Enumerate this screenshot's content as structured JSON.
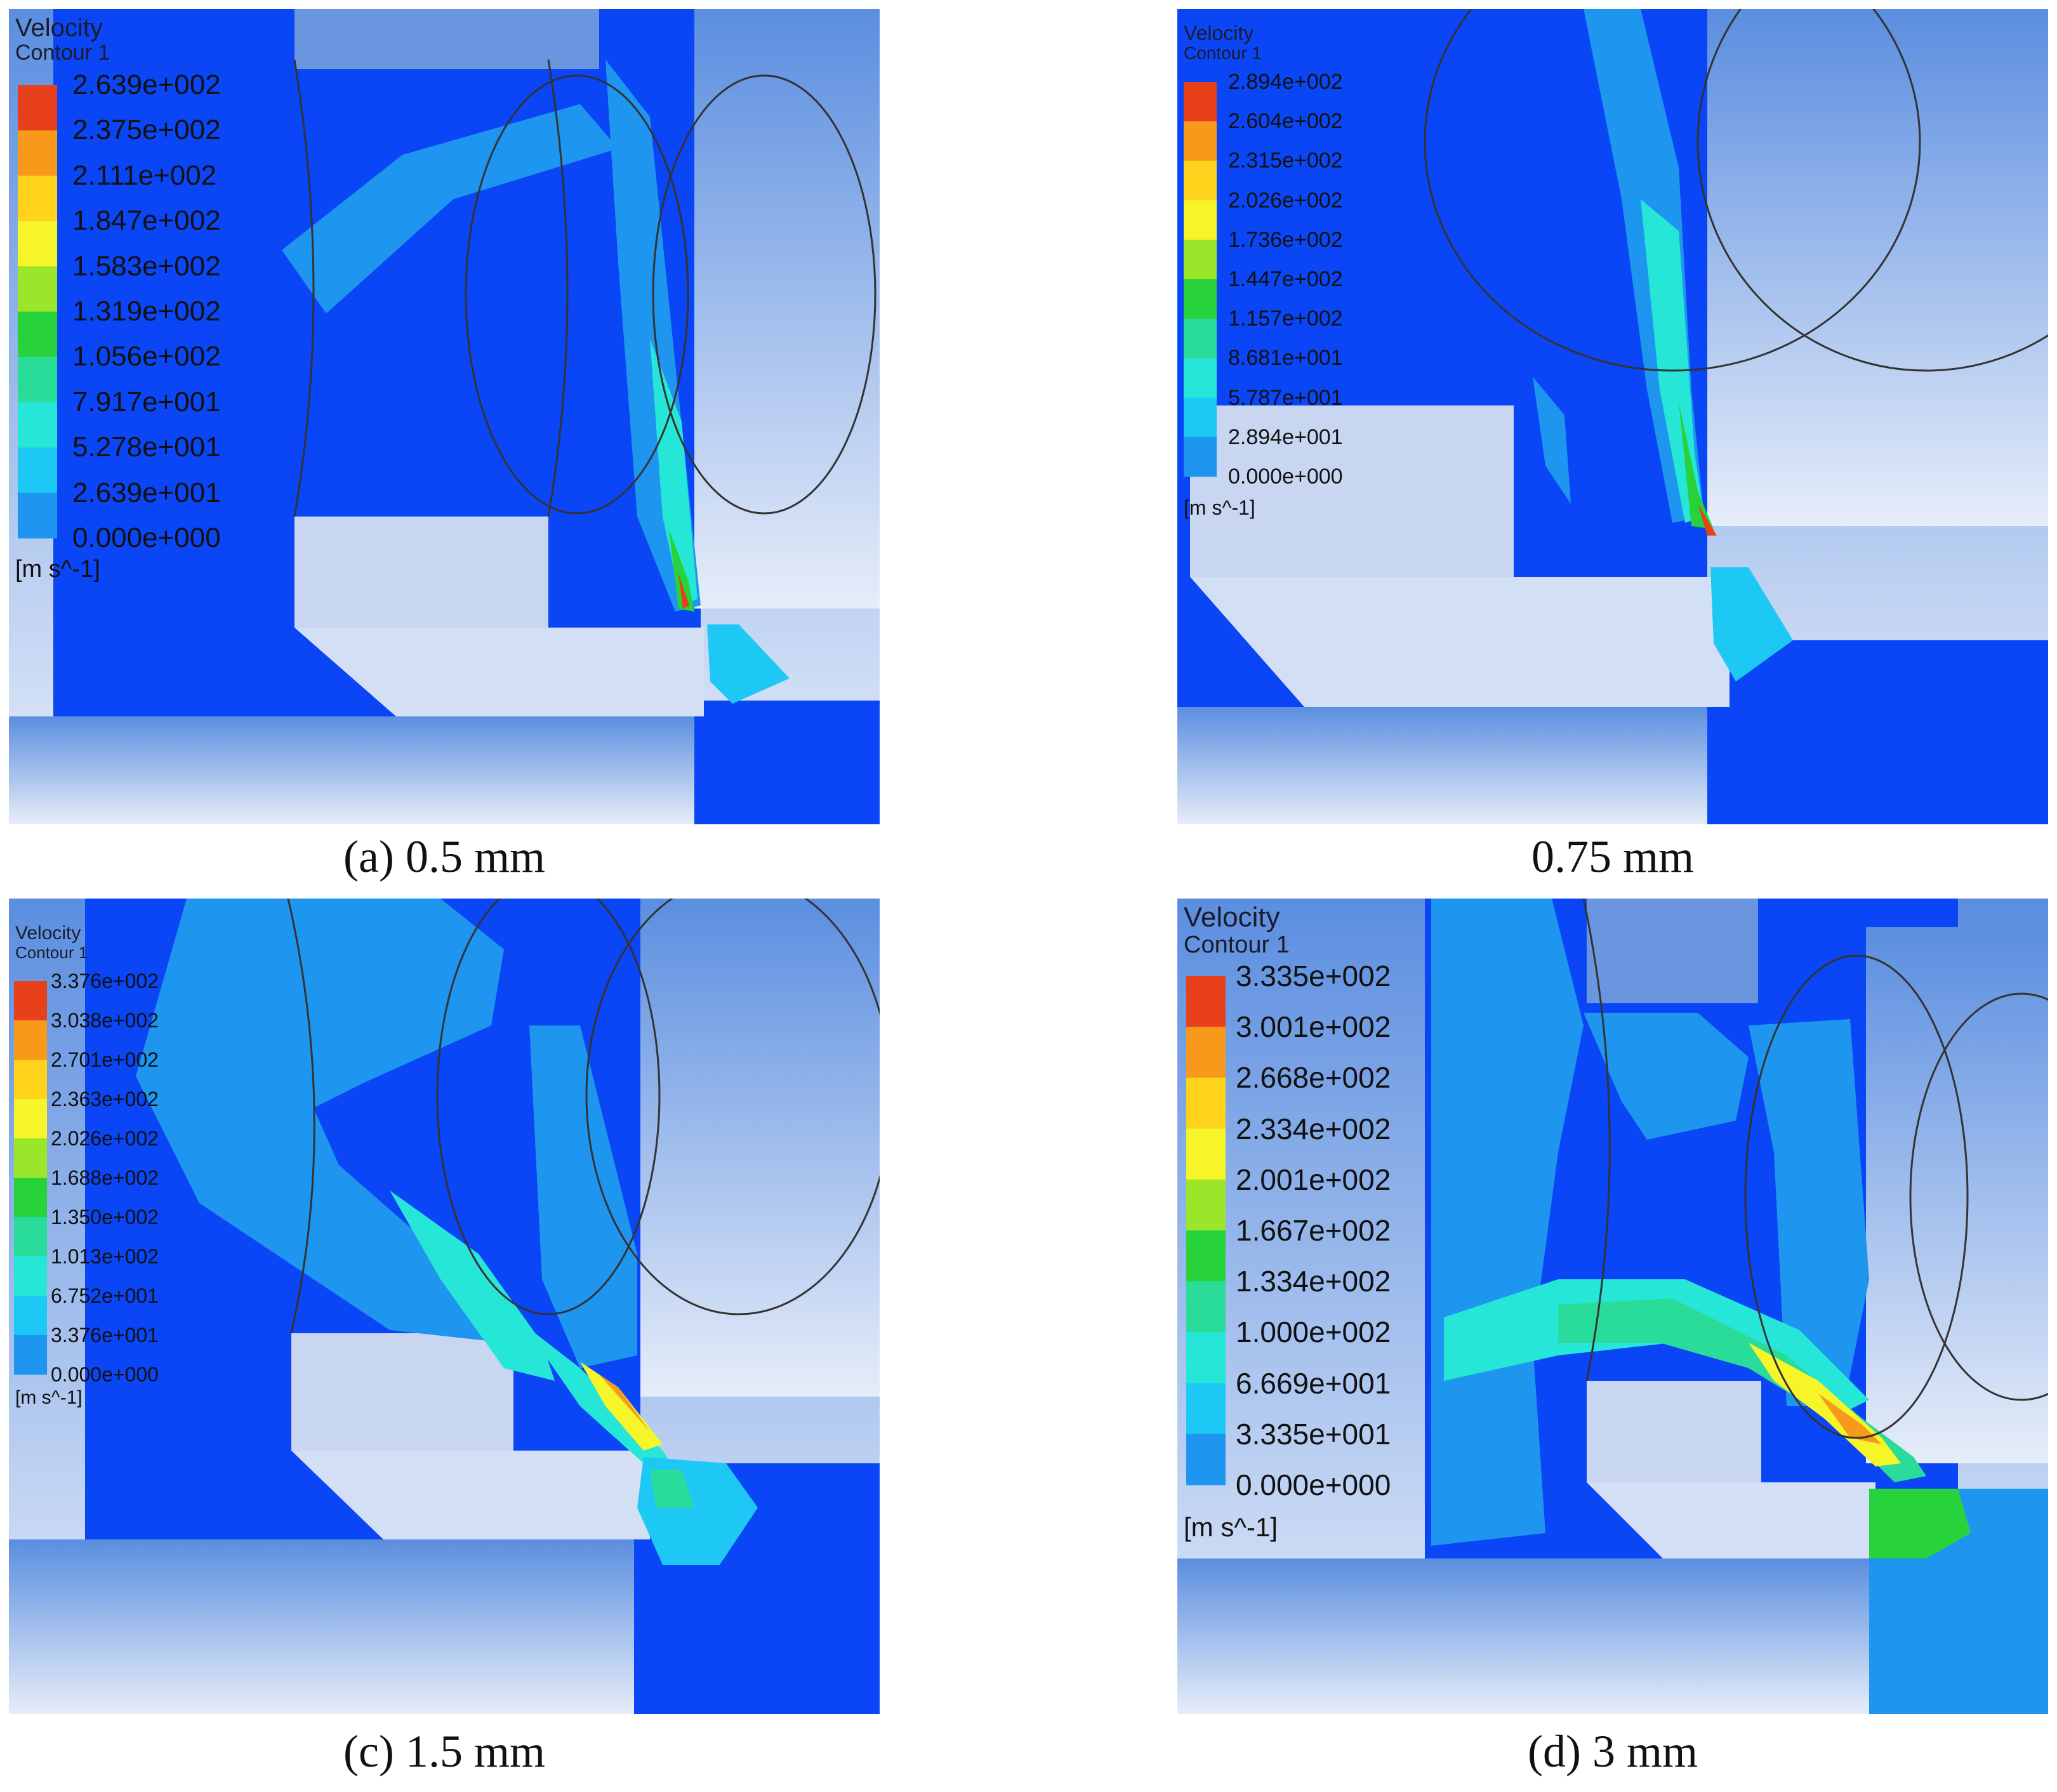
{
  "panels": [
    {
      "id": "a",
      "caption": "(a) 0.5 mm",
      "legend_title_1": "Velocity",
      "legend_title_2": "Contour 1",
      "units": "[m s^-1]",
      "ticks": [
        "2.639e+002",
        "2.375e+002",
        "2.111e+002",
        "1.847e+002",
        "1.583e+002",
        "1.319e+002",
        "1.056e+002",
        "7.917e+001",
        "5.278e+001",
        "2.639e+001",
        "0.000e+000"
      ]
    },
    {
      "id": "b",
      "caption": "0.75 mm",
      "legend_title_1": "Velocity",
      "legend_title_2": "Contour 1",
      "units": "[m s^-1]",
      "ticks": [
        "2.894e+002",
        "2.604e+002",
        "2.315e+002",
        "2.026e+002",
        "1.736e+002",
        "1.447e+002",
        "1.157e+002",
        "8.681e+001",
        "5.787e+001",
        "2.894e+001",
        "0.000e+000"
      ]
    },
    {
      "id": "c",
      "caption": "(c) 1.5 mm",
      "legend_title_1": "Velocity",
      "legend_title_2": "Contour 1",
      "units": "[m s^-1]",
      "ticks": [
        "3.376e+002",
        "3.038e+002",
        "2.701e+002",
        "2.363e+002",
        "2.026e+002",
        "1.688e+002",
        "1.350e+002",
        "1.013e+002",
        "6.752e+001",
        "3.376e+001",
        "0.000e+000"
      ]
    },
    {
      "id": "d",
      "caption": "(d) 3 mm",
      "legend_title_1": "Velocity",
      "legend_title_2": "Contour 1",
      "units": "[m s^-1]",
      "ticks": [
        "3.335e+002",
        "3.001e+002",
        "2.668e+002",
        "2.334e+002",
        "2.001e+002",
        "1.667e+002",
        "1.334e+002",
        "1.000e+002",
        "6.669e+001",
        "3.335e+001",
        "0.000e+000"
      ]
    }
  ],
  "colormap": [
    "#e8401a",
    "#f79a1c",
    "#ffd21c",
    "#f5f52a",
    "#9be62a",
    "#28d23a",
    "#2adc9a",
    "#26e6d8",
    "#1ec8f5",
    "#1e96f0",
    "#0a46f5"
  ]
}
